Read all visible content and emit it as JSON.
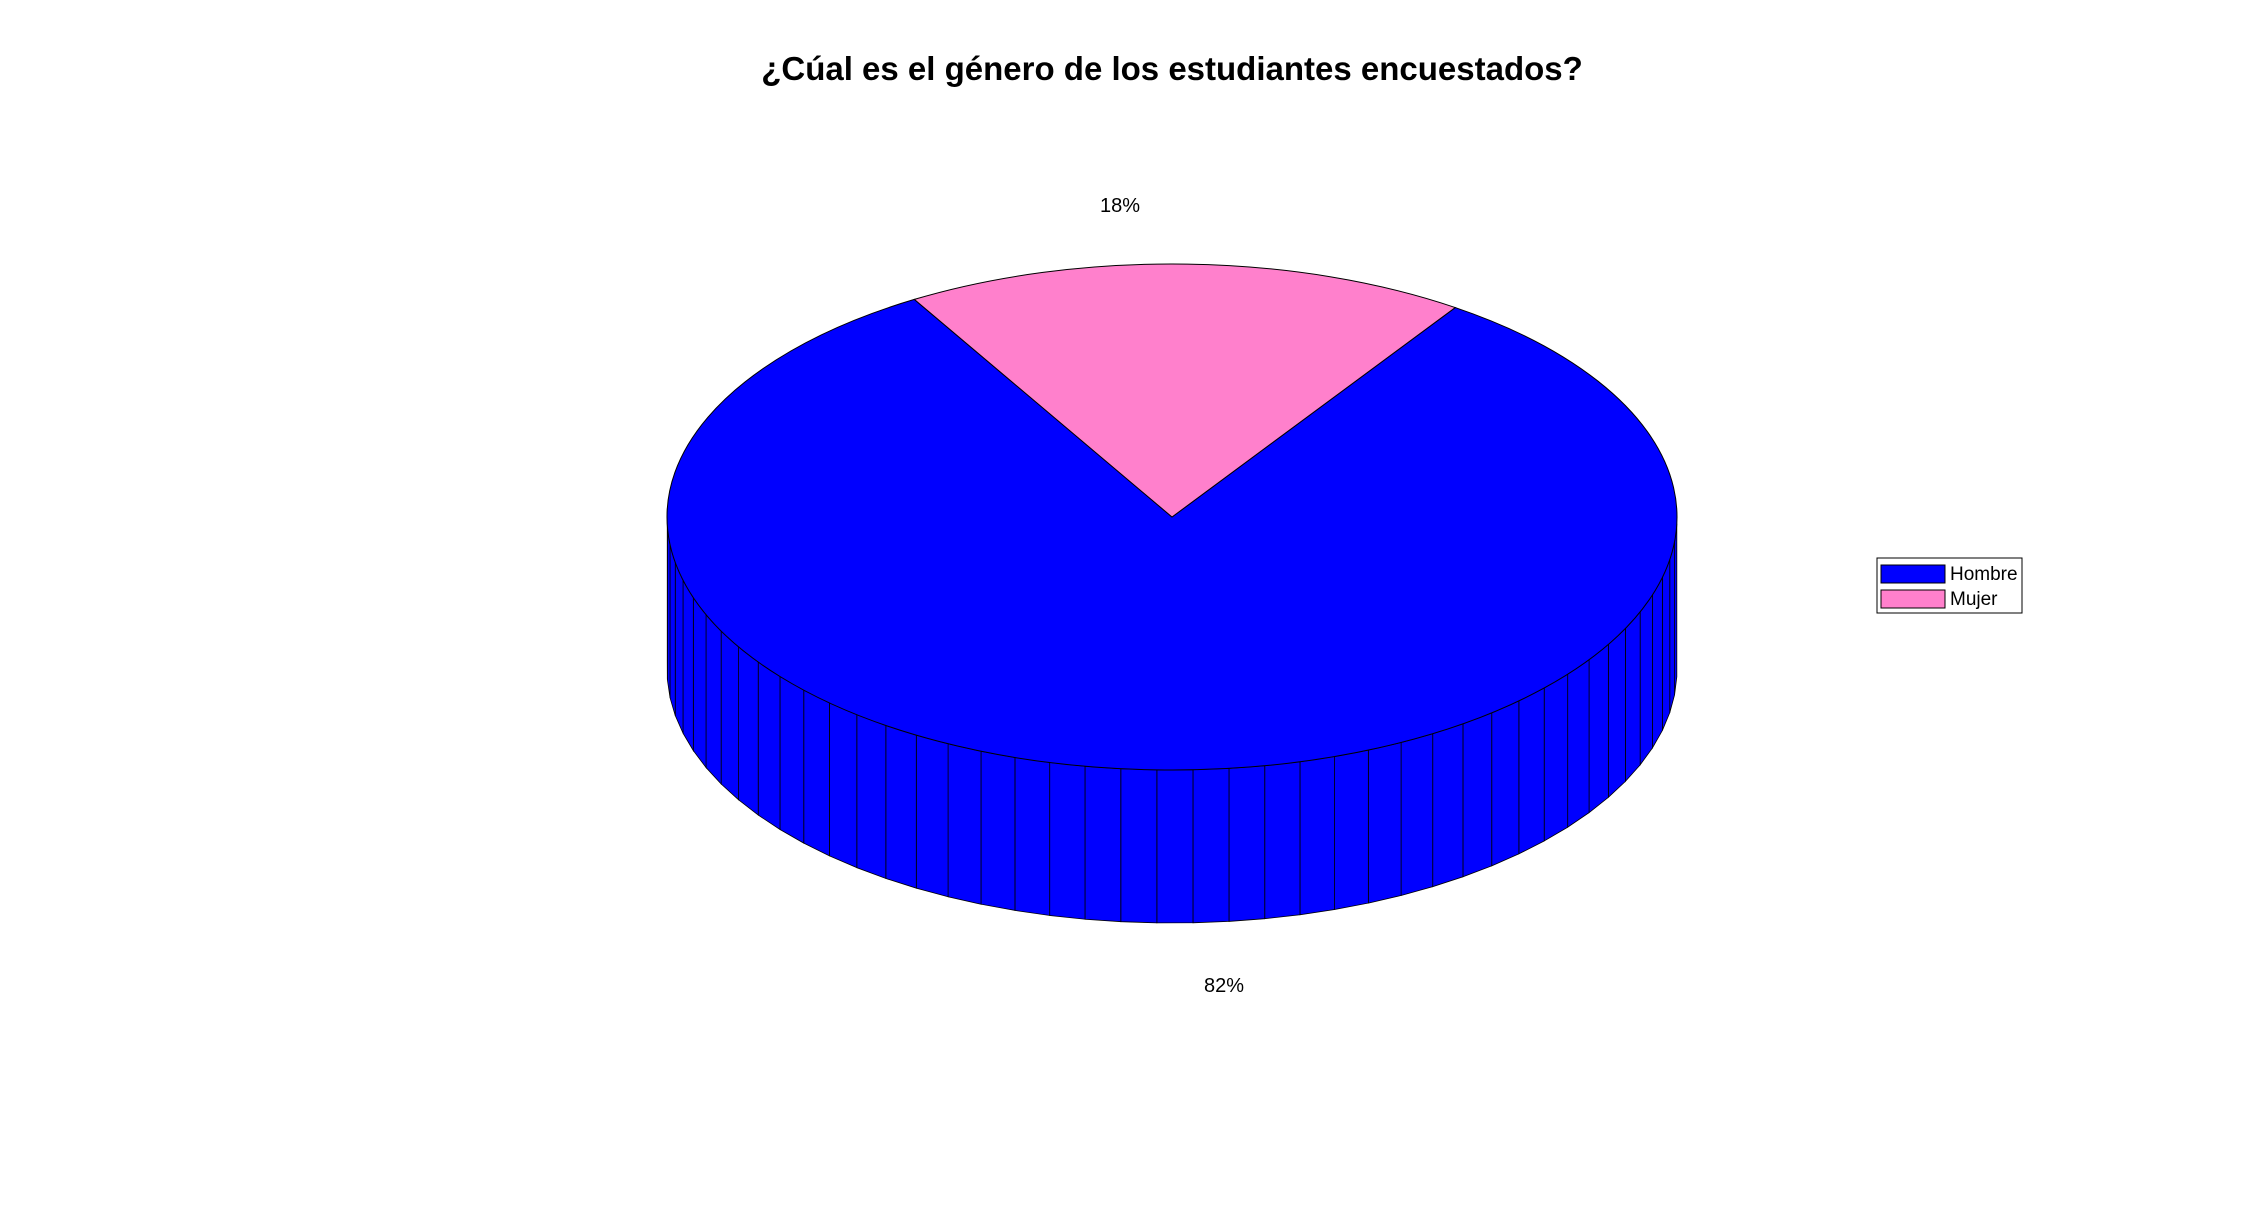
{
  "chart_data": {
    "type": "pie",
    "style": "3d",
    "title": "¿Cúal es el género de los estudiantes encuestados?",
    "slices": [
      {
        "label": "Hombre",
        "value": 82,
        "display": "82%",
        "color": "#0000FF"
      },
      {
        "label": "Mujer",
        "value": 18,
        "display": "18%",
        "color": "#FF80CC"
      }
    ],
    "legend": {
      "position": "right",
      "entries": [
        "Hombre",
        "Mujer"
      ]
    }
  }
}
